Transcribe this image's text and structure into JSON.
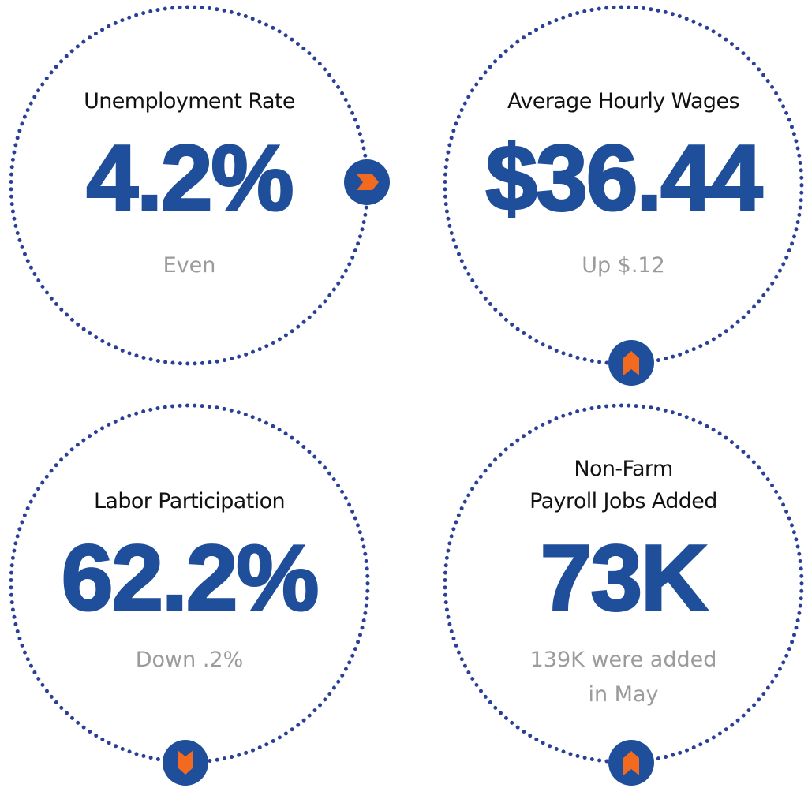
{
  "colors": {
    "value_blue": "#1f4e9a",
    "ring_blue": "#2a3f96",
    "accent_orange": "#f26a1f",
    "note_gray": "#9b9b9b"
  },
  "cards": [
    {
      "label": "Unemployment Rate",
      "value": "4.2%",
      "note": "Even",
      "indicator": "chevron-right-icon"
    },
    {
      "label": "Average Hourly Wages",
      "value": "$36.44",
      "note": "Up $.12",
      "indicator": "chevron-up-icon"
    },
    {
      "label": "Labor Participation",
      "value": "62.2%",
      "note": "Down .2%",
      "indicator": "chevron-down-icon"
    },
    {
      "label_line1": "Non-Farm",
      "label_line2": "Payroll Jobs Added",
      "value": "73K",
      "note_line1": "139K were added",
      "note_line2": "in May",
      "indicator": "chevron-up-icon"
    }
  ]
}
